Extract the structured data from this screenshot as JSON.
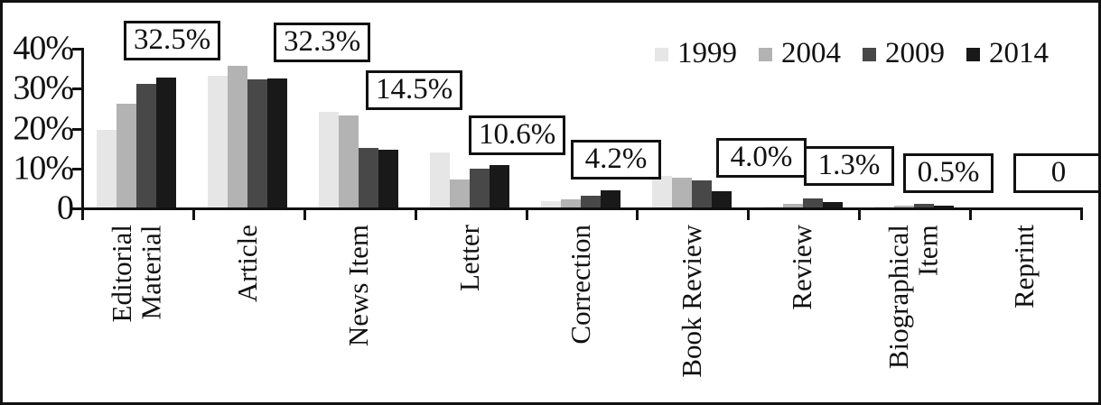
{
  "chart_data": {
    "type": "bar",
    "title": "",
    "xlabel": "",
    "ylabel": "",
    "ylim": [
      0,
      40
    ],
    "grid": false,
    "legend_position": "top-right",
    "y_tick_labels": [
      "40%",
      "30%",
      "20%",
      "10%",
      "0"
    ],
    "y_tick_values": [
      40,
      30,
      20,
      10,
      0
    ],
    "categories": [
      "Editorial\nMaterial",
      "Article",
      "News Item",
      "Letter",
      "Correction",
      "Book Review",
      "Review",
      "Biographical\nItem",
      "Reprint"
    ],
    "series": [
      {
        "name": "1999",
        "color": "#e6e6e6",
        "values": [
          19.5,
          33.0,
          24.0,
          13.8,
          1.5,
          8.0,
          0.3,
          0.2,
          0
        ]
      },
      {
        "name": "2004",
        "color": "#b3b3b3",
        "values": [
          26.0,
          35.5,
          23.0,
          7.0,
          2.0,
          7.5,
          1.0,
          0.4,
          0
        ]
      },
      {
        "name": "2009",
        "color": "#484848",
        "values": [
          31.0,
          32.0,
          15.0,
          9.7,
          2.9,
          6.7,
          2.3,
          1.0,
          0
        ]
      },
      {
        "name": "2014",
        "color": "#191919",
        "values": [
          32.5,
          32.3,
          14.5,
          10.6,
          4.2,
          4.0,
          1.3,
          0.5,
          0
        ]
      }
    ],
    "annotations": [
      {
        "category": "Editorial\nMaterial",
        "label": "32.5%"
      },
      {
        "category": "Article",
        "label": "32.3%"
      },
      {
        "category": "News Item",
        "label": "14.5%"
      },
      {
        "category": "Letter",
        "label": "10.6%"
      },
      {
        "category": "Correction",
        "label": "4.2%"
      },
      {
        "category": "Book Review",
        "label": "4.0%"
      },
      {
        "category": "Review",
        "label": "1.3%"
      },
      {
        "category": "Biographical\nItem",
        "label": "0.5%"
      },
      {
        "category": "Reprint",
        "label": "0"
      }
    ],
    "axis_color": "#111111"
  }
}
